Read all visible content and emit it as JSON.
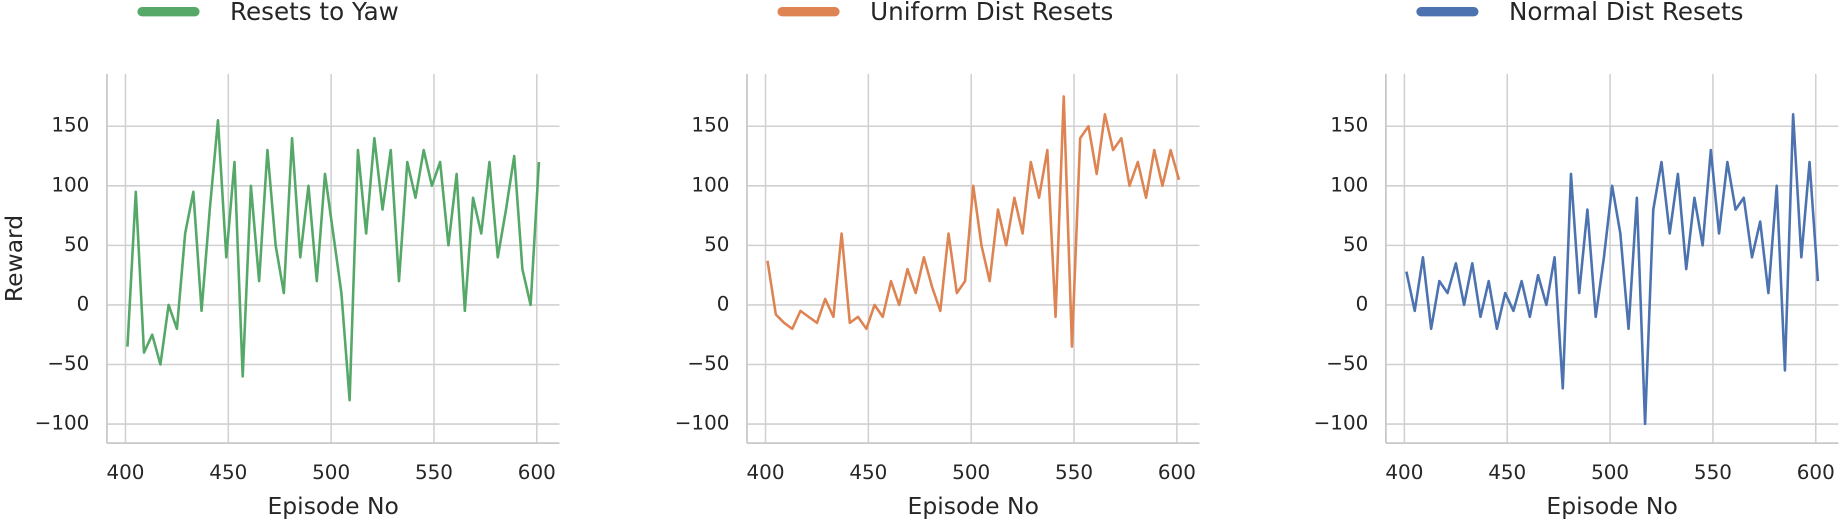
{
  "chart_data": [
    {
      "type": "line",
      "xlabel": "Episode No",
      "ylabel": "Reward",
      "grid": true,
      "xlim": [
        391,
        611
      ],
      "ylim": [
        -116,
        194
      ],
      "xticks": [
        400,
        450,
        500,
        550,
        600
      ],
      "yticks": [
        {
          "value": -100,
          "label": "−100"
        },
        {
          "value": -50,
          "label": "−50"
        },
        0,
        50,
        100,
        150
      ],
      "x": [
        401,
        405,
        409,
        413,
        417,
        421,
        425,
        429,
        433,
        437,
        441,
        445,
        449,
        453,
        457,
        461,
        465,
        469,
        473,
        477,
        481,
        485,
        489,
        493,
        497,
        501,
        505,
        509,
        513,
        517,
        521,
        525,
        529,
        533,
        537,
        541,
        545,
        549,
        553,
        557,
        561,
        565,
        569,
        573,
        577,
        581,
        585,
        589,
        593,
        597,
        601
      ],
      "series": [
        {
          "name": "Resets to Yaw",
          "color": "#55a868",
          "values": [
            -35,
            95,
            -40,
            -25,
            -50,
            0,
            -20,
            60,
            95,
            -5,
            80,
            155,
            40,
            120,
            -60,
            100,
            20,
            130,
            50,
            10,
            140,
            40,
            100,
            20,
            110,
            60,
            10,
            -80,
            130,
            60,
            140,
            80,
            130,
            20,
            120,
            90,
            130,
            100,
            120,
            50,
            110,
            -5,
            90,
            60,
            120,
            40,
            80,
            125,
            30,
            0,
            120
          ]
        }
      ]
    },
    {
      "type": "line",
      "xlabel": "Episode No",
      "grid": true,
      "xlim": [
        391,
        611
      ],
      "ylim": [
        -116,
        194
      ],
      "xticks": [
        400,
        450,
        500,
        550,
        600
      ],
      "yticks": [
        {
          "value": -100,
          "label": "−100"
        },
        {
          "value": -50,
          "label": "−50"
        },
        0,
        50,
        100,
        150
      ],
      "x": [
        401,
        405,
        409,
        413,
        417,
        421,
        425,
        429,
        433,
        437,
        441,
        445,
        449,
        453,
        457,
        461,
        465,
        469,
        473,
        477,
        481,
        485,
        489,
        493,
        497,
        501,
        505,
        509,
        513,
        517,
        521,
        525,
        529,
        533,
        537,
        541,
        545,
        549,
        553,
        557,
        561,
        565,
        569,
        573,
        577,
        581,
        585,
        589,
        593,
        597,
        601
      ],
      "series": [
        {
          "name": "Uniform Dist Resets",
          "color": "#dd8452",
          "values": [
            37,
            -8,
            -15,
            -20,
            -5,
            -10,
            -15,
            5,
            -10,
            60,
            -15,
            -10,
            -20,
            0,
            -10,
            20,
            0,
            30,
            10,
            40,
            15,
            -5,
            60,
            10,
            20,
            100,
            50,
            20,
            80,
            50,
            90,
            60,
            120,
            90,
            130,
            -10,
            175,
            -35,
            140,
            150,
            110,
            160,
            130,
            140,
            100,
            120,
            90,
            130,
            100,
            130,
            105
          ]
        }
      ]
    },
    {
      "type": "line",
      "xlabel": "Episode No",
      "grid": true,
      "xlim": [
        391,
        611
      ],
      "ylim": [
        -116,
        194
      ],
      "xticks": [
        400,
        450,
        500,
        550,
        600
      ],
      "yticks": [
        {
          "value": -100,
          "label": "−100"
        },
        {
          "value": -50,
          "label": "−50"
        },
        0,
        50,
        100,
        150
      ],
      "x": [
        401,
        405,
        409,
        413,
        417,
        421,
        425,
        429,
        433,
        437,
        441,
        445,
        449,
        453,
        457,
        461,
        465,
        469,
        473,
        477,
        481,
        485,
        489,
        493,
        497,
        501,
        505,
        509,
        513,
        517,
        521,
        525,
        529,
        533,
        537,
        541,
        545,
        549,
        553,
        557,
        561,
        565,
        569,
        573,
        577,
        581,
        585,
        589,
        593,
        597,
        601
      ],
      "series": [
        {
          "name": "Normal Dist Resets",
          "color": "#4c72b0",
          "values": [
            28,
            -5,
            40,
            -20,
            20,
            10,
            35,
            0,
            35,
            -10,
            20,
            -20,
            10,
            -5,
            20,
            -10,
            25,
            0,
            40,
            -70,
            110,
            10,
            80,
            -10,
            40,
            100,
            60,
            -20,
            90,
            -100,
            80,
            120,
            60,
            110,
            30,
            90,
            50,
            130,
            60,
            120,
            80,
            90,
            40,
            70,
            10,
            100,
            -55,
            160,
            40,
            120,
            20
          ]
        }
      ]
    }
  ]
}
